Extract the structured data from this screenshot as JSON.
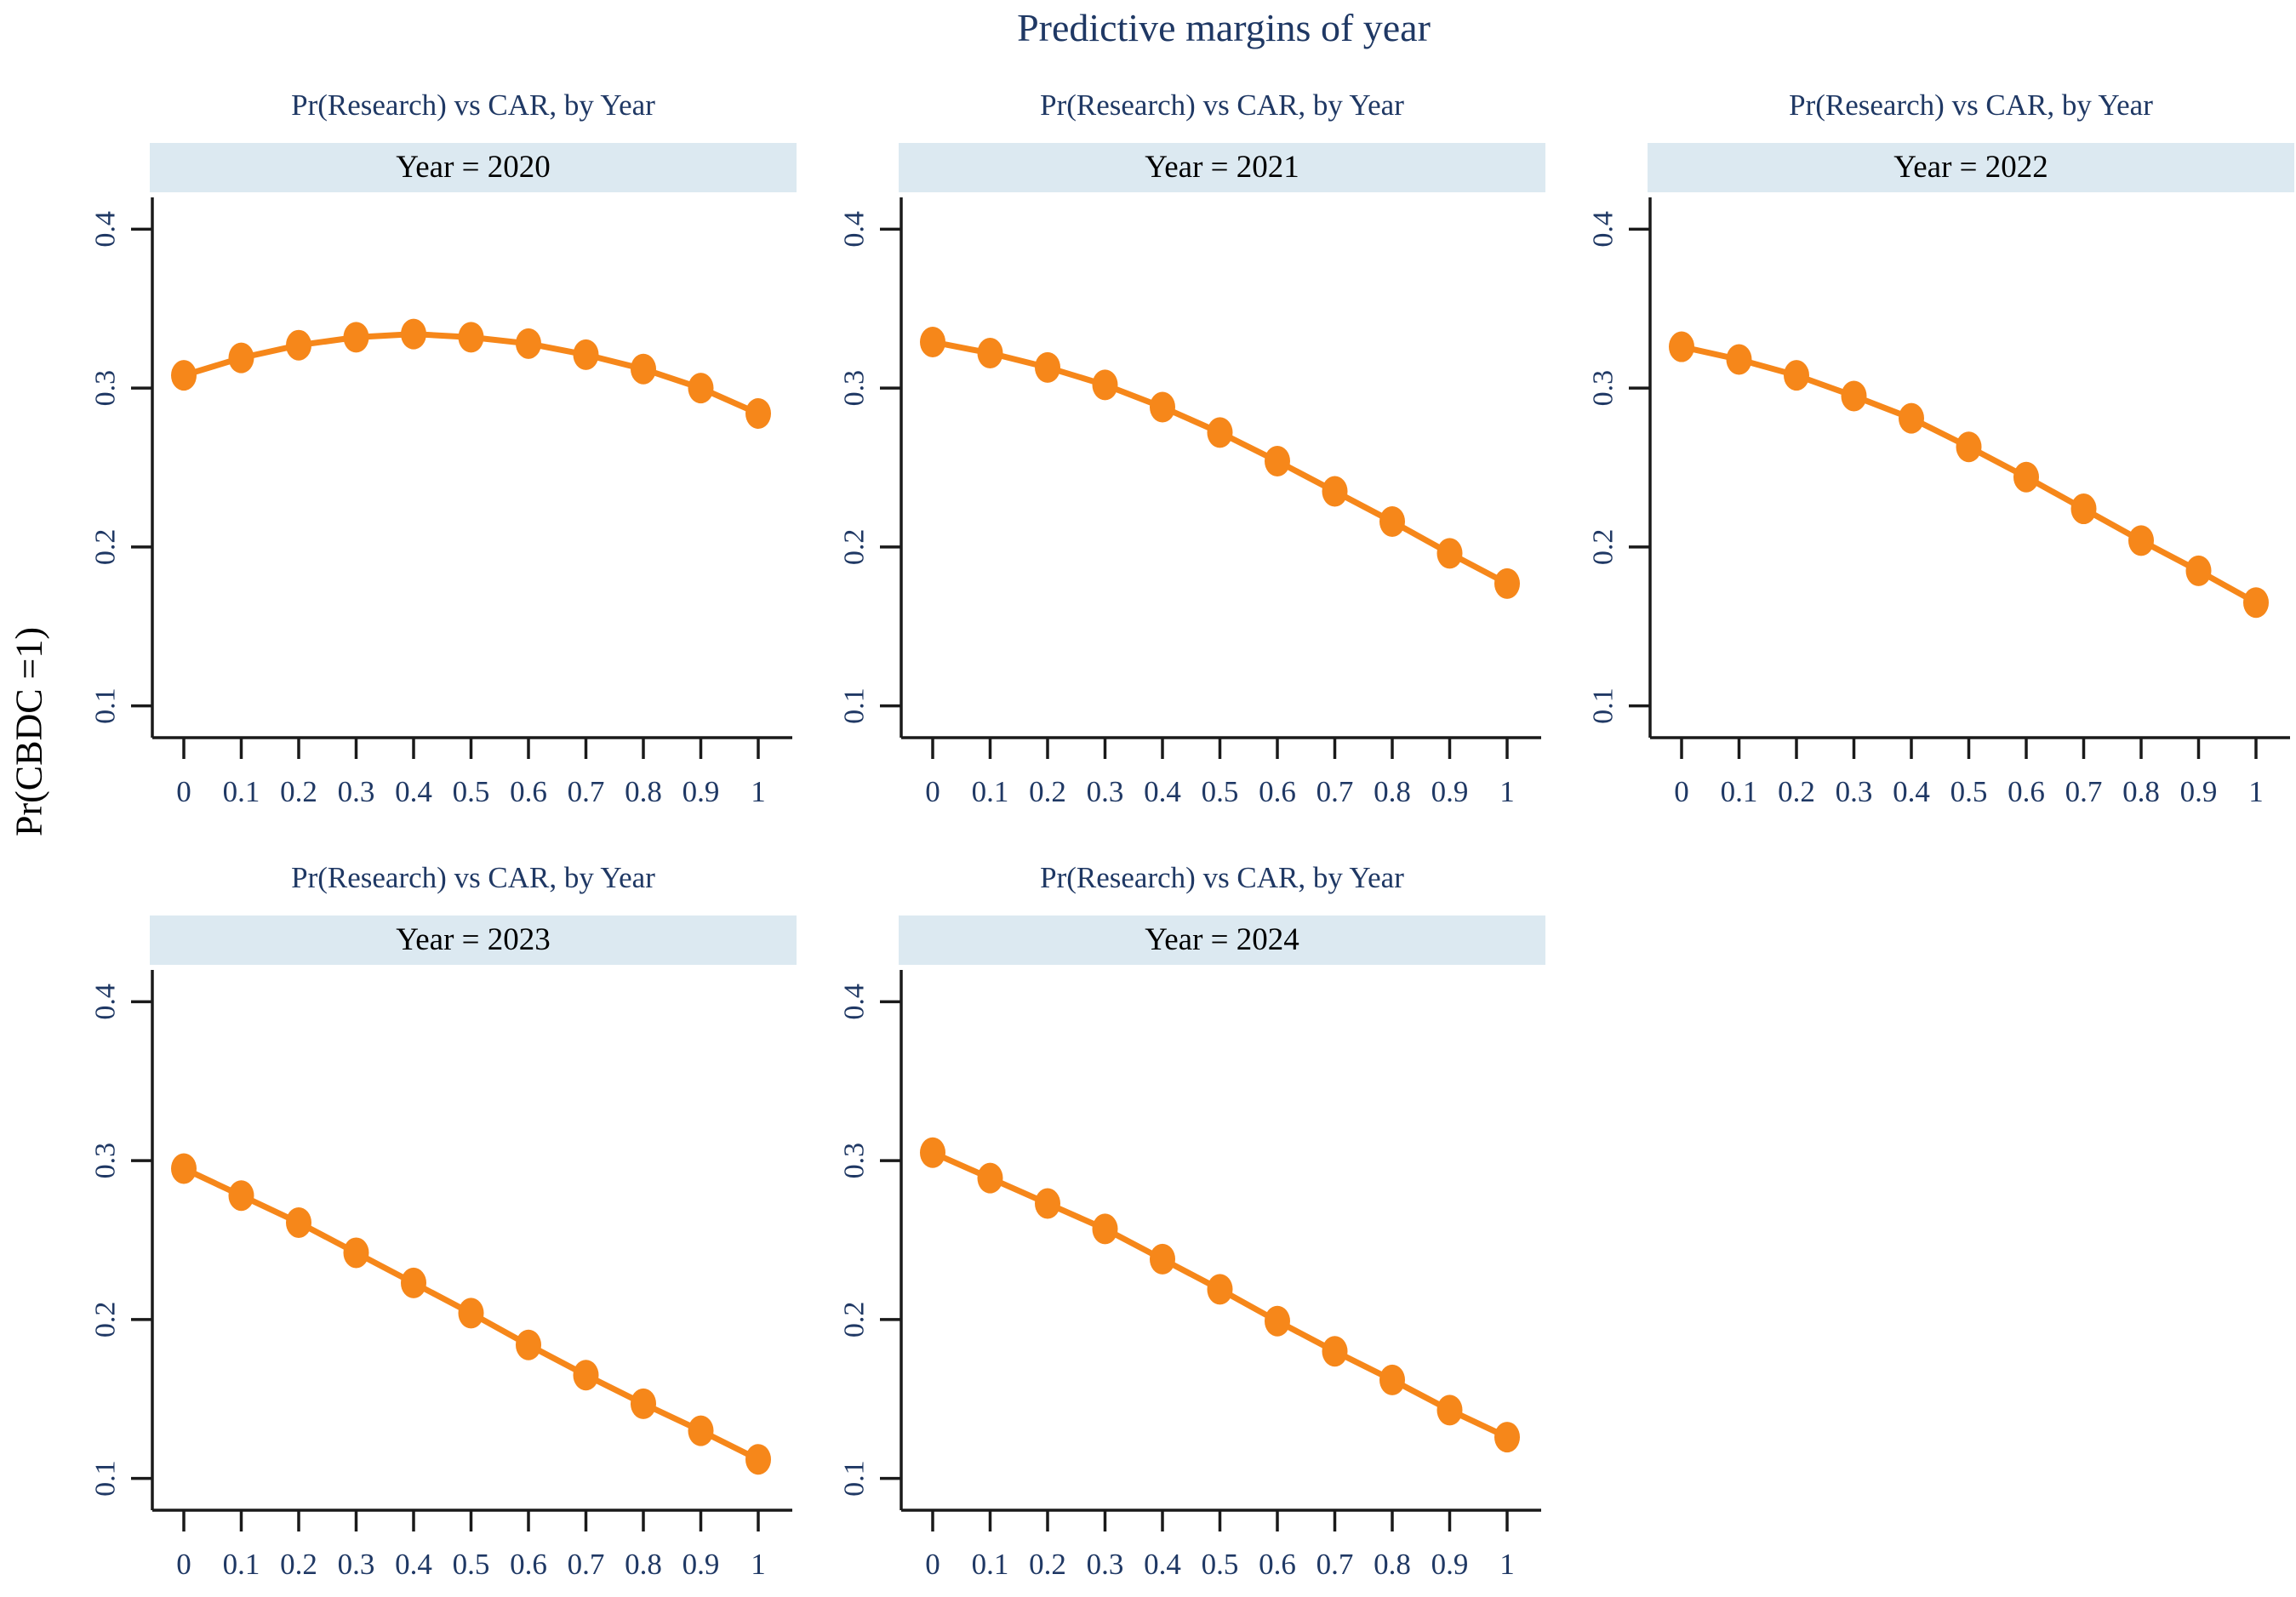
{
  "title": "Predictive margins of year",
  "y_axis_label": "Pr(CBDC =1)",
  "colors": {
    "accent_orange": "#f6871a",
    "header_band": "#dce9f1",
    "title_navy": "#1f3864",
    "tick_label_navy": "#1f3864",
    "axis_line": "#1a1a1a",
    "background": "#ffffff"
  },
  "chart_data": {
    "type": "line",
    "title": "Predictive margins of year",
    "ylabel": "Pr(CBDC =1)",
    "xlabel": "",
    "x": [
      0,
      0.1,
      0.2,
      0.3,
      0.4,
      0.5,
      0.6,
      0.7,
      0.8,
      0.9,
      1
    ],
    "x_ticks": [
      "0",
      "0.1",
      "0.2",
      "0.3",
      "0.4",
      "0.5",
      "0.6",
      "0.7",
      "0.8",
      "0.9",
      "1"
    ],
    "y_ticks": [
      {
        "value": 0.1,
        "label": "0.1"
      },
      {
        "value": 0.2,
        "label": "0.2"
      },
      {
        "value": 0.3,
        "label": "0.3"
      },
      {
        "value": 0.4,
        "label": "0.4"
      }
    ],
    "ylim": [
      0.08,
      0.42
    ],
    "grid": "off",
    "legend": "none",
    "marker": "filled-circle",
    "panels": [
      {
        "title": "Pr(Research) vs CAR, by Year",
        "subtitle": "Year = 2020",
        "year": 2020,
        "values": [
          0.308,
          0.319,
          0.327,
          0.332,
          0.334,
          0.332,
          0.328,
          0.321,
          0.312,
          0.3,
          0.284
        ]
      },
      {
        "title": "Pr(Research) vs CAR, by Year",
        "subtitle": "Year = 2021",
        "year": 2021,
        "values": [
          0.329,
          0.322,
          0.313,
          0.302,
          0.288,
          0.272,
          0.254,
          0.235,
          0.216,
          0.196,
          0.177
        ]
      },
      {
        "title": "Pr(Research) vs CAR, by Year",
        "subtitle": "Year = 2022",
        "year": 2022,
        "values": [
          0.326,
          0.318,
          0.308,
          0.295,
          0.281,
          0.263,
          0.244,
          0.224,
          0.204,
          0.185,
          0.165
        ]
      },
      {
        "title": "Pr(Research) vs CAR, by Year",
        "subtitle": "Year = 2023",
        "year": 2023,
        "values": [
          0.295,
          0.278,
          0.261,
          0.242,
          0.223,
          0.204,
          0.184,
          0.165,
          0.147,
          0.13,
          0.112
        ]
      },
      {
        "title": "Pr(Research) vs CAR, by Year",
        "subtitle": "Year = 2024",
        "year": 2024,
        "values": [
          0.305,
          0.289,
          0.273,
          0.257,
          0.238,
          0.219,
          0.199,
          0.18,
          0.162,
          0.143,
          0.126
        ]
      }
    ]
  }
}
